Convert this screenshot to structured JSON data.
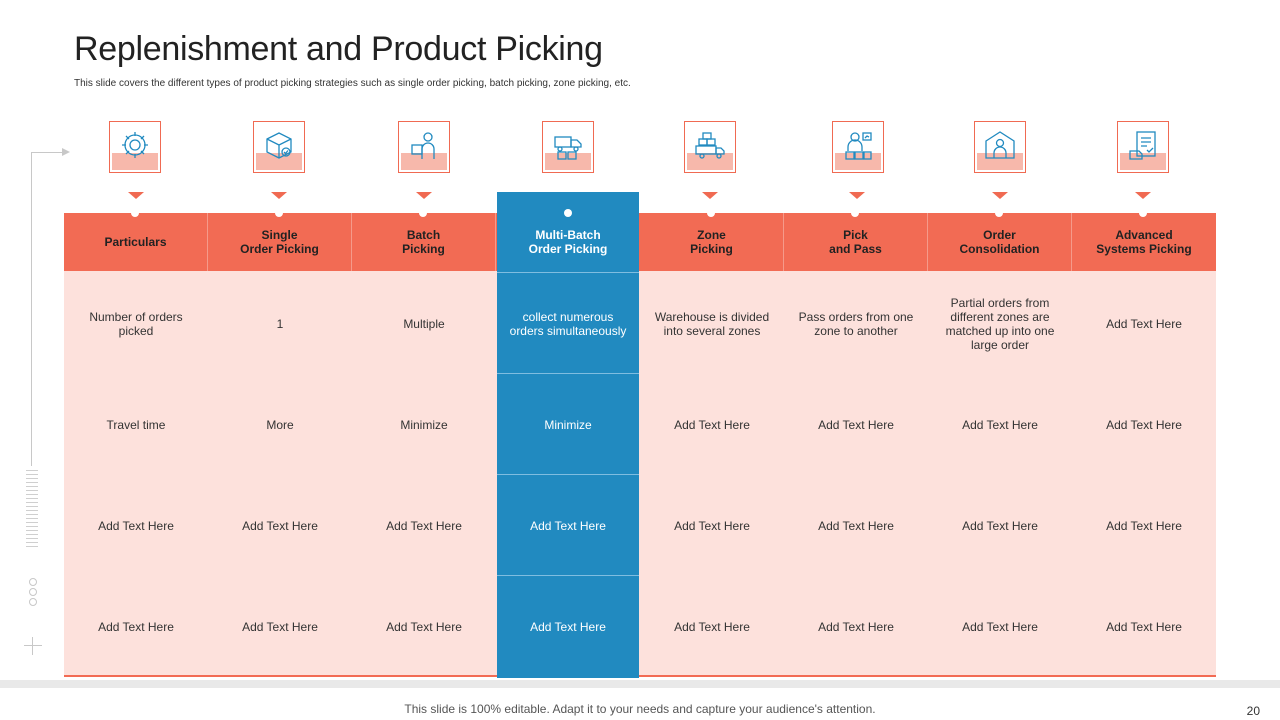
{
  "slide": {
    "title": "Replenishment and Product Picking",
    "subtitle": "This slide covers the different types of product picking strategies such as single order picking, batch picking,  zone picking, etc.",
    "footer": "This slide is 100% editable. Adapt it to your needs and capture your audience's attention.",
    "page_number": "20"
  },
  "colors": {
    "accent": "#f26b54",
    "highlight": "#218ac0",
    "cell_background": "#fde1dc"
  },
  "icons": [
    "settings-gear-icon",
    "package-box-icon",
    "delivery-worker-icon",
    "forklift-packages-icon",
    "delivery-truck-icon",
    "worker-boxes-icon",
    "warehouse-worker-icon",
    "document-checklist-icon"
  ],
  "table": {
    "headers": [
      "Particulars",
      "Single\nOrder Picking",
      "Batch\nPicking",
      "Multi-Batch\nOrder Picking",
      "Zone\nPicking",
      "Pick\nand Pass",
      "Order\nConsolidation",
      "Advanced\nSystems Picking"
    ],
    "rows": [
      [
        "Number of orders picked",
        "1",
        "Multiple",
        "collect numerous orders simultaneously",
        "Warehouse is divided into several zones",
        "Pass orders from one zone to another",
        "Partial orders from different zones are matched up into one large order",
        "Add Text Here"
      ],
      [
        "Travel time",
        "More",
        "Minimize",
        "Minimize",
        "Add Text Here",
        "Add Text Here",
        "Add Text Here",
        "Add Text Here"
      ],
      [
        "Add Text Here",
        "Add Text Here",
        "Add Text Here",
        "Add Text Here",
        "Add Text Here",
        "Add Text Here",
        "Add Text Here",
        "Add Text Here"
      ],
      [
        "Add Text Here",
        "Add Text Here",
        "Add Text Here",
        "Add Text Here",
        "Add Text Here",
        "Add Text Here",
        "Add Text Here",
        "Add Text Here"
      ]
    ]
  }
}
